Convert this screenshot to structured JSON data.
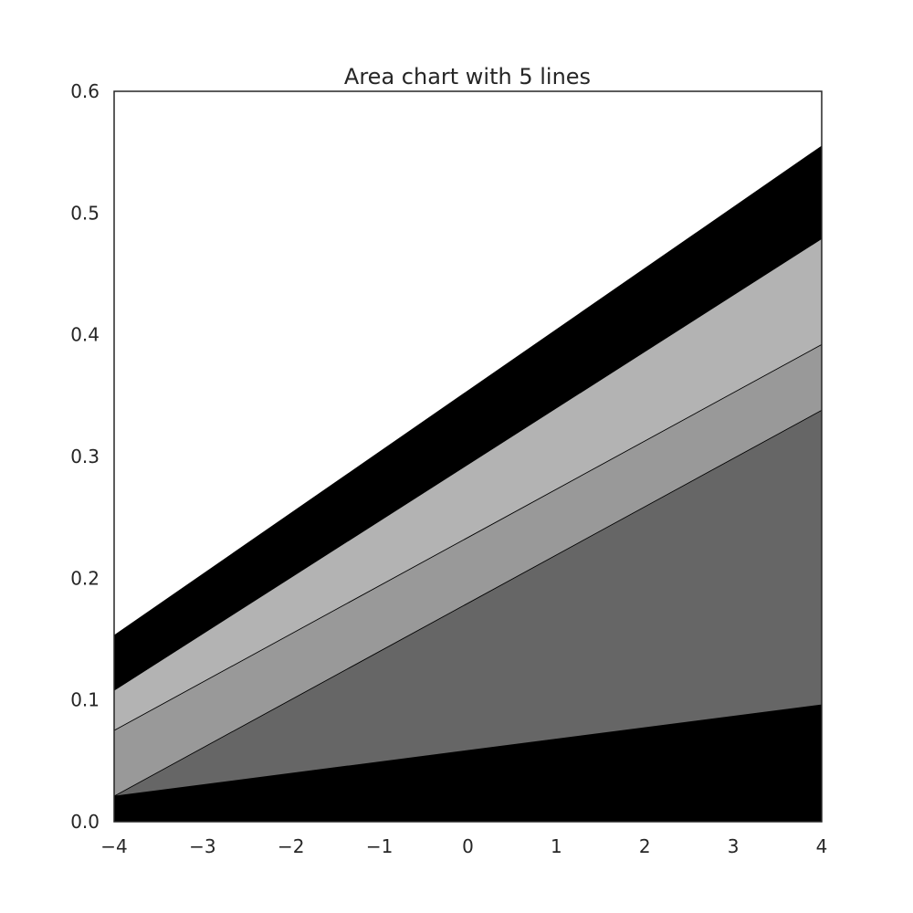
{
  "chart_data": {
    "type": "area",
    "stacked": true,
    "title": "Area chart with 5 lines",
    "xlabel": "",
    "ylabel": "",
    "x": [
      -4,
      4
    ],
    "xlim": [
      -4,
      4
    ],
    "ylim": [
      0,
      0.6
    ],
    "x_ticks": [
      -4,
      -3,
      -2,
      -1,
      0,
      1,
      2,
      3,
      4
    ],
    "x_tick_labels": [
      "−4",
      "−3",
      "−2",
      "−1",
      "0",
      "1",
      "2",
      "3",
      "4"
    ],
    "y_ticks": [
      0.0,
      0.1,
      0.2,
      0.3,
      0.4,
      0.5,
      0.6
    ],
    "y_tick_labels": [
      "0.0",
      "0.1",
      "0.2",
      "0.3",
      "0.4",
      "0.5",
      "0.6"
    ],
    "grid": false,
    "legend": "none",
    "series": [
      {
        "values": [
          0.021,
          0.096
        ],
        "color": "#000000"
      },
      {
        "values": [
          0.0,
          0.242
        ],
        "color": "#666666"
      },
      {
        "values": [
          0.054,
          0.054
        ],
        "color": "#999999"
      },
      {
        "values": [
          0.033,
          0.087
        ],
        "color": "#b3b3b3"
      },
      {
        "values": [
          0.045,
          0.076
        ],
        "color": "#000000"
      }
    ]
  }
}
